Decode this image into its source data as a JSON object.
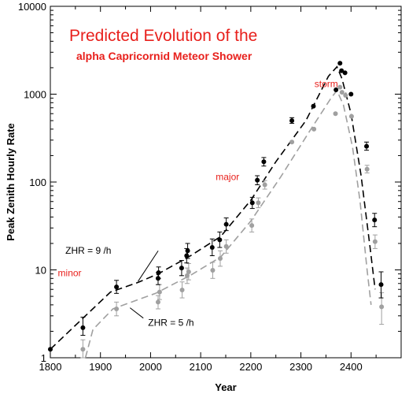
{
  "chart_data": {
    "type": "scatter",
    "title": "Predicted Evolution of the",
    "subtitle": "alpha Capricornid Meteor Shower",
    "xlabel": "Year",
    "ylabel": "Peak Zenith Hourly Rate",
    "xlim": [
      1800,
      2500
    ],
    "ylim": [
      1,
      10000
    ],
    "yscale": "log",
    "x_ticks": [
      "1800",
      "1900",
      "2000",
      "2100",
      "2200",
      "2300",
      "2400"
    ],
    "y_ticks": [
      "1",
      "10",
      "100",
      "1000",
      "10000"
    ],
    "grid": false,
    "colors": {
      "black": "#000000",
      "gray": "#a0a0a0",
      "red": "#e8201c"
    },
    "series": [
      {
        "marker_color": "#000000",
        "points": [
          {
            "x": 1800,
            "y": 1.25
          },
          {
            "x": 1865,
            "y": 2.2,
            "err": [
              1.8,
              2.9
            ]
          },
          {
            "x": 1932,
            "y": 6.4,
            "err": [
              5.4,
              7.6
            ]
          },
          {
            "x": 2015,
            "y": 8.0,
            "err": [
              6.8,
              9.3
            ]
          },
          {
            "x": 2016,
            "y": 9.3,
            "err": [
              8.0,
              10.8
            ]
          },
          {
            "x": 2062,
            "y": 10.5,
            "err": [
              8.6,
              12.8
            ]
          },
          {
            "x": 2072,
            "y": 14.5,
            "err": [
              12.0,
              17.5
            ]
          },
          {
            "x": 2074,
            "y": 16.5,
            "err": [
              13.5,
              20.0
            ]
          },
          {
            "x": 2123,
            "y": 18.0,
            "err": [
              14.5,
              22.5
            ]
          },
          {
            "x": 2138,
            "y": 22.0,
            "err": [
              18.0,
              27.0
            ]
          },
          {
            "x": 2151,
            "y": 33.0,
            "err": [
              28.0,
              39.0
            ]
          },
          {
            "x": 2203,
            "y": 58.0,
            "err": [
              50.0,
              67.0
            ]
          },
          {
            "x": 2213,
            "y": 105.0,
            "err": [
              93.0,
              118.0
            ]
          },
          {
            "x": 2226,
            "y": 170.0,
            "err": [
              152.0,
              190.0
            ]
          },
          {
            "x": 2282,
            "y": 500.0,
            "err": [
              465.0,
              540.0
            ]
          },
          {
            "x": 2325,
            "y": 730.0
          },
          {
            "x": 2370,
            "y": 1120.0
          },
          {
            "x": 2378,
            "y": 2250.0
          },
          {
            "x": 2381,
            "y": 1850.0
          },
          {
            "x": 2388,
            "y": 1750.0
          },
          {
            "x": 2400,
            "y": 1000.0
          },
          {
            "x": 2431,
            "y": 255.0,
            "err": [
              230.0,
              285.0
            ]
          },
          {
            "x": 2447,
            "y": 37.0,
            "err": [
              31.0,
              44.0
            ]
          },
          {
            "x": 2460,
            "y": 6.8,
            "err": [
              4.8,
              9.5
            ]
          }
        ]
      },
      {
        "marker_color": "#a0a0a0",
        "points": [
          {
            "x": 1865,
            "y": 1.25,
            "err": [
              1.0,
              1.6
            ]
          },
          {
            "x": 1932,
            "y": 3.6,
            "err": [
              3.0,
              4.3
            ]
          },
          {
            "x": 2015,
            "y": 4.3,
            "err": [
              3.6,
              5.1
            ]
          },
          {
            "x": 2018,
            "y": 5.6,
            "err": [
              4.6,
              6.8
            ]
          },
          {
            "x": 2063,
            "y": 5.9,
            "err": [
              4.8,
              7.3
            ]
          },
          {
            "x": 2073,
            "y": 8.6,
            "err": [
              7.0,
              10.5
            ]
          },
          {
            "x": 2076,
            "y": 9.5,
            "err": [
              7.7,
              11.8
            ]
          },
          {
            "x": 2124,
            "y": 9.9,
            "err": [
              8.0,
              12.2
            ]
          },
          {
            "x": 2139,
            "y": 13.5,
            "err": [
              11.0,
              16.5
            ]
          },
          {
            "x": 2151,
            "y": 18.5,
            "err": [
              15.5,
              22.0
            ]
          },
          {
            "x": 2202,
            "y": 32.0,
            "err": [
              27.0,
              38.0
            ]
          },
          {
            "x": 2215,
            "y": 58.0,
            "err": [
              51.0,
              66.0
            ]
          },
          {
            "x": 2228,
            "y": 93.0,
            "err": [
              83.0,
              104.0
            ]
          },
          {
            "x": 2282,
            "y": 285.0
          },
          {
            "x": 2326,
            "y": 400.0
          },
          {
            "x": 2369,
            "y": 600.0
          },
          {
            "x": 2378,
            "y": 1200.0
          },
          {
            "x": 2382,
            "y": 1050.0
          },
          {
            "x": 2389,
            "y": 970.0
          },
          {
            "x": 2401,
            "y": 560.0
          },
          {
            "x": 2432,
            "y": 140.0,
            "err": [
              127.0,
              155.0
            ]
          },
          {
            "x": 2448,
            "y": 21.0,
            "err": [
              17.5,
              25.0
            ]
          },
          {
            "x": 2461,
            "y": 3.8,
            "err": [
              2.4,
              5.5
            ]
          }
        ]
      }
    ],
    "model_curves": [
      {
        "color": "#000000",
        "style": "dashed",
        "points": [
          [
            1800,
            1.25
          ],
          [
            1870,
            3.0
          ],
          [
            1920,
            5.6
          ],
          [
            1975,
            7.2
          ],
          [
            2015,
            9.0
          ],
          [
            2080,
            14.5
          ],
          [
            2140,
            24.0
          ],
          [
            2200,
            62.0
          ],
          [
            2250,
            170.0
          ],
          [
            2310,
            500.0
          ],
          [
            2355,
            1600.0
          ],
          [
            2372,
            2050.0
          ],
          [
            2382,
            1500.0
          ],
          [
            2400,
            600.0
          ],
          [
            2420,
            120.0
          ],
          [
            2438,
            18.0
          ],
          [
            2448,
            6.0
          ]
        ]
      },
      {
        "color": "#a0a0a0",
        "style": "dashed",
        "points": [
          [
            1870,
            1.0
          ],
          [
            1885,
            2.1
          ],
          [
            1925,
            3.6
          ],
          [
            1980,
            4.7
          ],
          [
            2010,
            5.4
          ],
          [
            2080,
            8.7
          ],
          [
            2140,
            14.0
          ],
          [
            2200,
            36.0
          ],
          [
            2260,
            115.0
          ],
          [
            2320,
            400.0
          ],
          [
            2360,
            900.0
          ],
          [
            2372,
            1100.0
          ],
          [
            2385,
            750.0
          ],
          [
            2403,
            250.0
          ],
          [
            2418,
            60.0
          ],
          [
            2432,
            10.0
          ],
          [
            2440,
            4.0
          ]
        ]
      }
    ],
    "annotations": [
      {
        "text": "storm",
        "x": 2327,
        "y": 1200,
        "color": "#e8201c"
      },
      {
        "text": "major",
        "x": 2130,
        "y": 105,
        "color": "#e8201c"
      },
      {
        "text": "minor",
        "x": 1815,
        "y": 8.5,
        "color": "#e8201c"
      },
      {
        "text": "ZHR = 9 /h",
        "x": 1830,
        "y": 15.2,
        "color": "#000000",
        "arrow_to": [
          1975,
          7.4
        ]
      },
      {
        "text": "ZHR = 5 /h",
        "x": 1995,
        "y": 2.3,
        "color": "#000000",
        "arrow_to": [
          1959,
          3.7
        ]
      }
    ]
  }
}
